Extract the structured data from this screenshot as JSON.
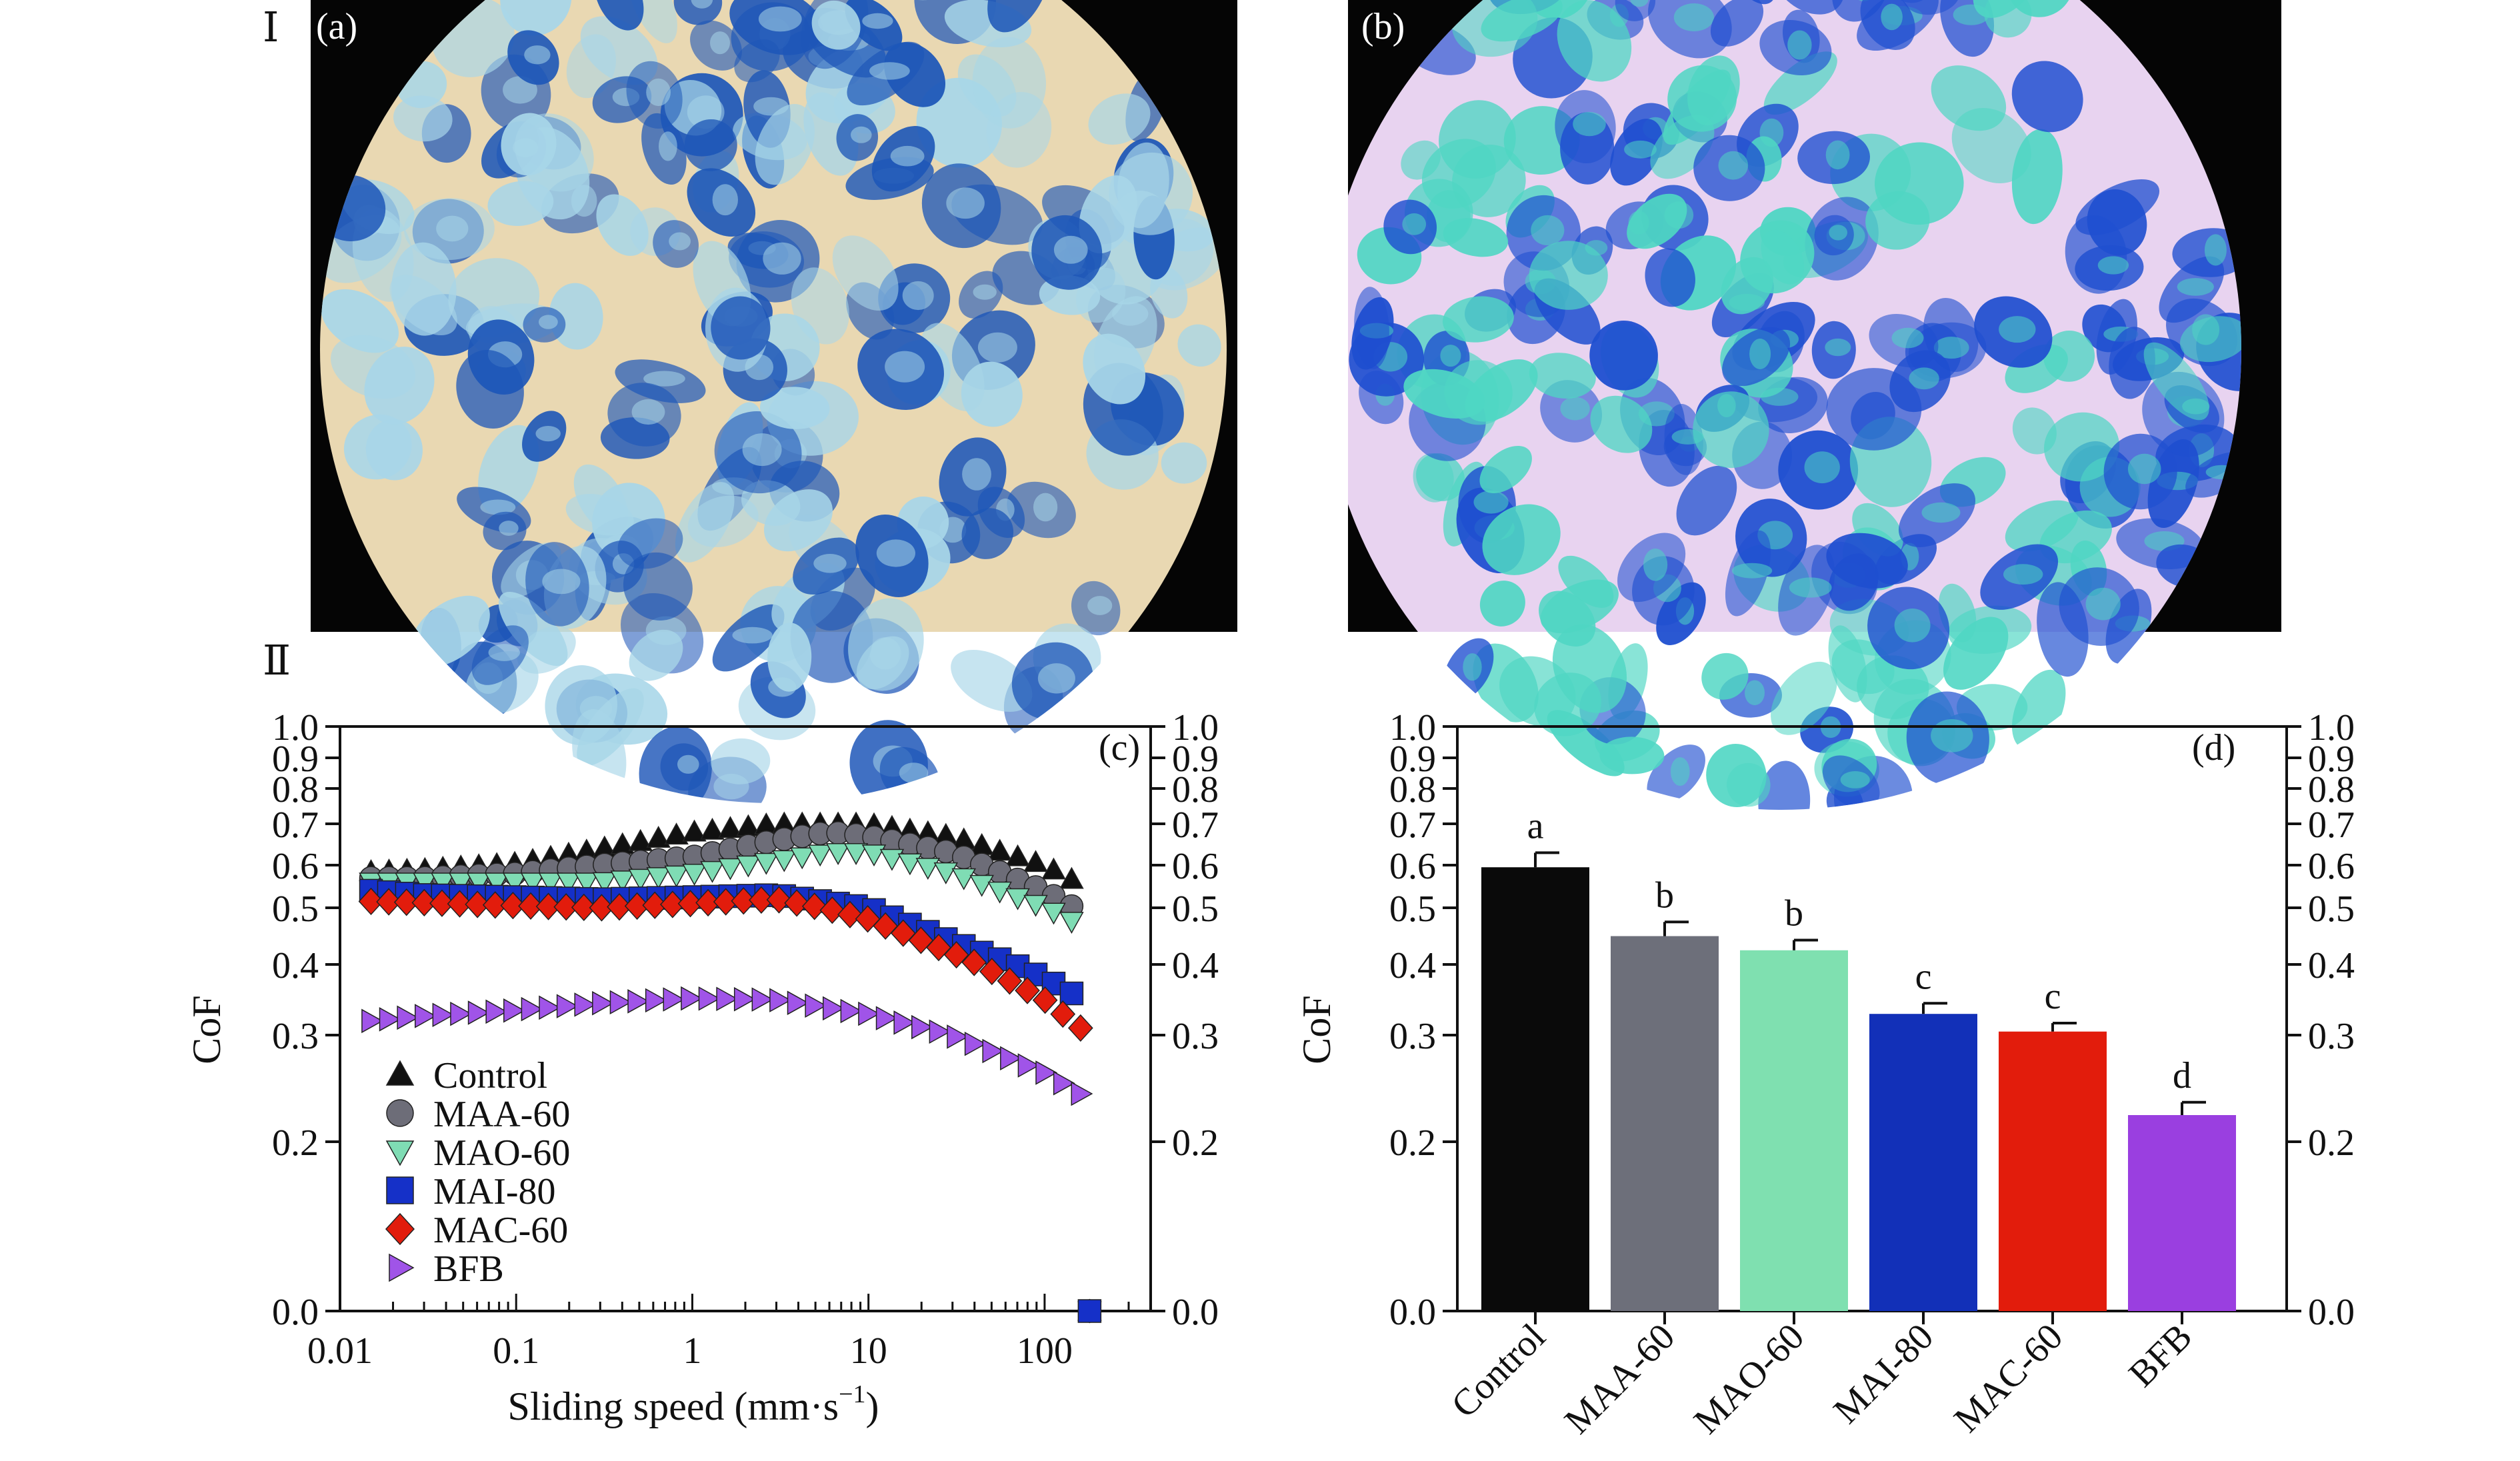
{
  "section_labels": {
    "top": "Ⅰ",
    "bottom": "Ⅱ"
  },
  "panel_labels": {
    "a": "(a)",
    "b": "(b)",
    "c": "(c)",
    "d": "(d)"
  },
  "micrographs": {
    "a": {
      "background": "#e9d8b2",
      "stain": "#1e57b8",
      "light": "#a8d6e8"
    },
    "b": {
      "background": "#e8d3f0",
      "stain": "#1f4fd0",
      "light": "#4fd6c3"
    }
  },
  "chart_data": [
    {
      "type": "scatter",
      "panel": "(c)",
      "xlabel": "Sliding speed (mm·s",
      "xlabel_sup": "−1",
      "xlabel_close": ")",
      "ylabel": "CoF",
      "x_scale": "log",
      "xlim": [
        0.01,
        400
      ],
      "ylim": [
        0.0,
        1.0
      ],
      "x_ticks": [
        "0.01",
        "0.1",
        "1",
        "10",
        "100"
      ],
      "y_ticks": [
        "0.0",
        "0.2",
        "0.3",
        "0.4",
        "0.5",
        "0.6",
        "0.7",
        "0.8",
        "0.9",
        "1.0"
      ],
      "legend_position": "bottom-left",
      "series": [
        {
          "name": "Control",
          "marker": "triangle-up",
          "color": "#111111",
          "x": [
            0.015,
            0.03,
            0.1,
            0.3,
            1,
            3,
            10,
            30,
            100,
            180
          ],
          "y": [
            0.585,
            0.59,
            0.605,
            0.64,
            0.68,
            0.7,
            0.7,
            0.67,
            0.6,
            0.545
          ]
        },
        {
          "name": "MAA-60",
          "marker": "circle",
          "color": "#6d6d78",
          "x": [
            0.015,
            0.03,
            0.1,
            0.3,
            1,
            3,
            6,
            10,
            30,
            100,
            180
          ],
          "y": [
            0.57,
            0.57,
            0.58,
            0.6,
            0.62,
            0.66,
            0.68,
            0.67,
            0.63,
            0.54,
            0.48
          ]
        },
        {
          "name": "MAO-60",
          "marker": "triangle-down",
          "color": "#7fdcb4",
          "x": [
            0.015,
            0.03,
            0.1,
            0.3,
            1,
            3,
            6,
            10,
            30,
            100,
            180
          ],
          "y": [
            0.56,
            0.56,
            0.56,
            0.56,
            0.58,
            0.61,
            0.63,
            0.63,
            0.58,
            0.5,
            0.46
          ]
        },
        {
          "name": "MAI-80",
          "marker": "square",
          "color": "#1530c8",
          "x": [
            0.015,
            0.03,
            0.1,
            0.3,
            1,
            3,
            10,
            30,
            100,
            180
          ],
          "y": [
            0.54,
            0.53,
            0.525,
            0.52,
            0.525,
            0.53,
            0.5,
            0.44,
            0.38,
            0.345
          ]
        },
        {
          "name": "MAC-60",
          "marker": "diamond",
          "color": "#e21c0c",
          "x": [
            0.015,
            0.03,
            0.1,
            0.3,
            1,
            3,
            10,
            30,
            100,
            160
          ],
          "y": [
            0.515,
            0.512,
            0.505,
            0.5,
            0.51,
            0.52,
            0.48,
            0.42,
            0.35,
            0.31
          ]
        },
        {
          "name": "BFB",
          "marker": "triangle-right",
          "color": "#a054e8",
          "x": [
            0.015,
            0.03,
            0.1,
            0.3,
            1,
            3,
            10,
            30,
            100,
            160
          ],
          "y": [
            0.32,
            0.327,
            0.335,
            0.345,
            0.352,
            0.35,
            0.33,
            0.3,
            0.265,
            0.245
          ]
        }
      ]
    },
    {
      "type": "bar",
      "panel": "(d)",
      "ylabel": "CoF",
      "ylim": [
        0.0,
        1.0
      ],
      "y_ticks": [
        "0.0",
        "0.2",
        "0.3",
        "0.4",
        "0.5",
        "0.6",
        "0.7",
        "0.8",
        "0.9",
        "1.0"
      ],
      "categories": [
        "Control",
        "MAA-60",
        "MAO-60",
        "MAI-80",
        "MAC-60",
        "BFB"
      ],
      "values": [
        0.595,
        0.45,
        0.425,
        0.33,
        0.305,
        0.225
      ],
      "errors": [
        0.035,
        0.025,
        0.018,
        0.015,
        0.012,
        0.012
      ],
      "letters": [
        "a",
        "b",
        "b",
        "c",
        "c",
        "d"
      ],
      "colors": [
        "#0a0a0a",
        "#6d6f7a",
        "#7fe0b0",
        "#1230b8",
        "#e21c0c",
        "#9a3fe0"
      ]
    }
  ]
}
